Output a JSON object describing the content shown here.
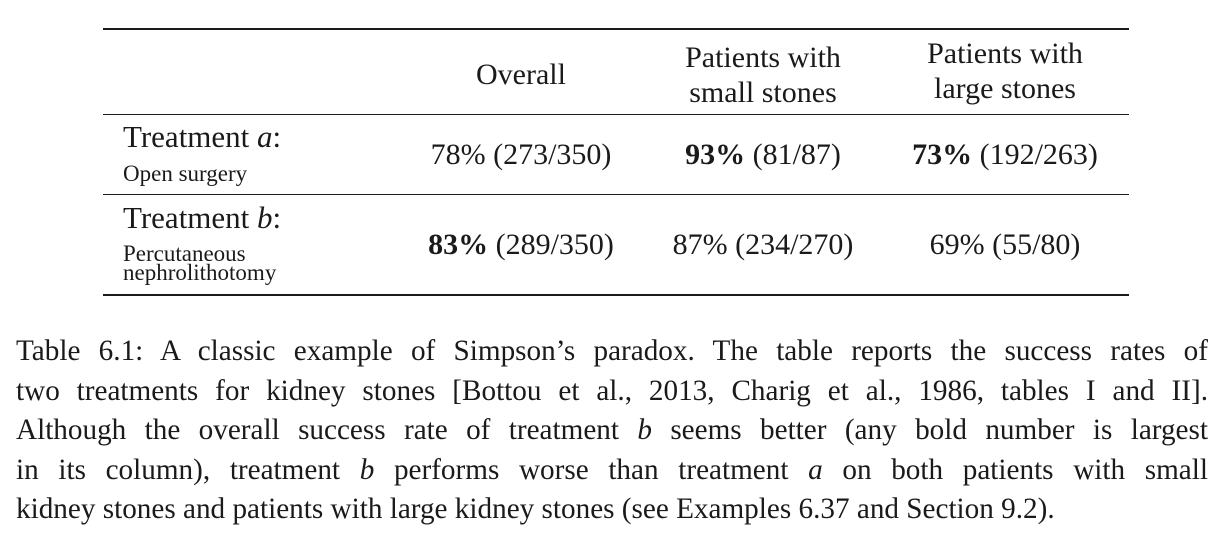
{
  "table": {
    "headers": {
      "col1": "Overall",
      "col2_line1": "Patients with",
      "col2_line2": "small stones",
      "col3_line1": "Patients with",
      "col3_line2": "large stones"
    },
    "rows": [
      {
        "label_prefix": "Treatment ",
        "label_letter": "a",
        "label_suffix": ":",
        "sub_line1": "Open surgery",
        "sub_line2": "",
        "overall_pct": "78%",
        "overall_frac": " (273/350)",
        "overall_bold": false,
        "small_pct": "93%",
        "small_frac": " (81/87)",
        "small_bold": true,
        "large_pct": "73%",
        "large_frac": " (192/263)",
        "large_bold": true
      },
      {
        "label_prefix": "Treatment ",
        "label_letter": "b",
        "label_suffix": ":",
        "sub_line1": "Percutaneous",
        "sub_line2": "nephrolithotomy",
        "overall_pct": "83%",
        "overall_frac": " (289/350)",
        "overall_bold": true,
        "small_pct": "87%",
        "small_frac": " (234/270)",
        "small_bold": false,
        "large_pct": "69%",
        "large_frac": " (55/80)",
        "large_bold": false
      }
    ]
  },
  "caption": {
    "lines": [
      [
        "Table 6.1: A classic example of Simpson’s paradox. The table reports the success rates of"
      ],
      [
        "two treatments for kidney stones [Bottou et al., 2013, Charig et al., 1986, tables I and II]."
      ],
      [
        "Although the overall success rate of treatment ",
        "b",
        " seems better (any bold number is largest"
      ],
      [
        "in its column), treatment ",
        "b",
        " performs worse than treatment ",
        "a",
        " on both patients with small"
      ],
      [
        "kidney stones and patients with large kidney stones (see Examples 6.37 and Section 9.2)."
      ]
    ]
  }
}
